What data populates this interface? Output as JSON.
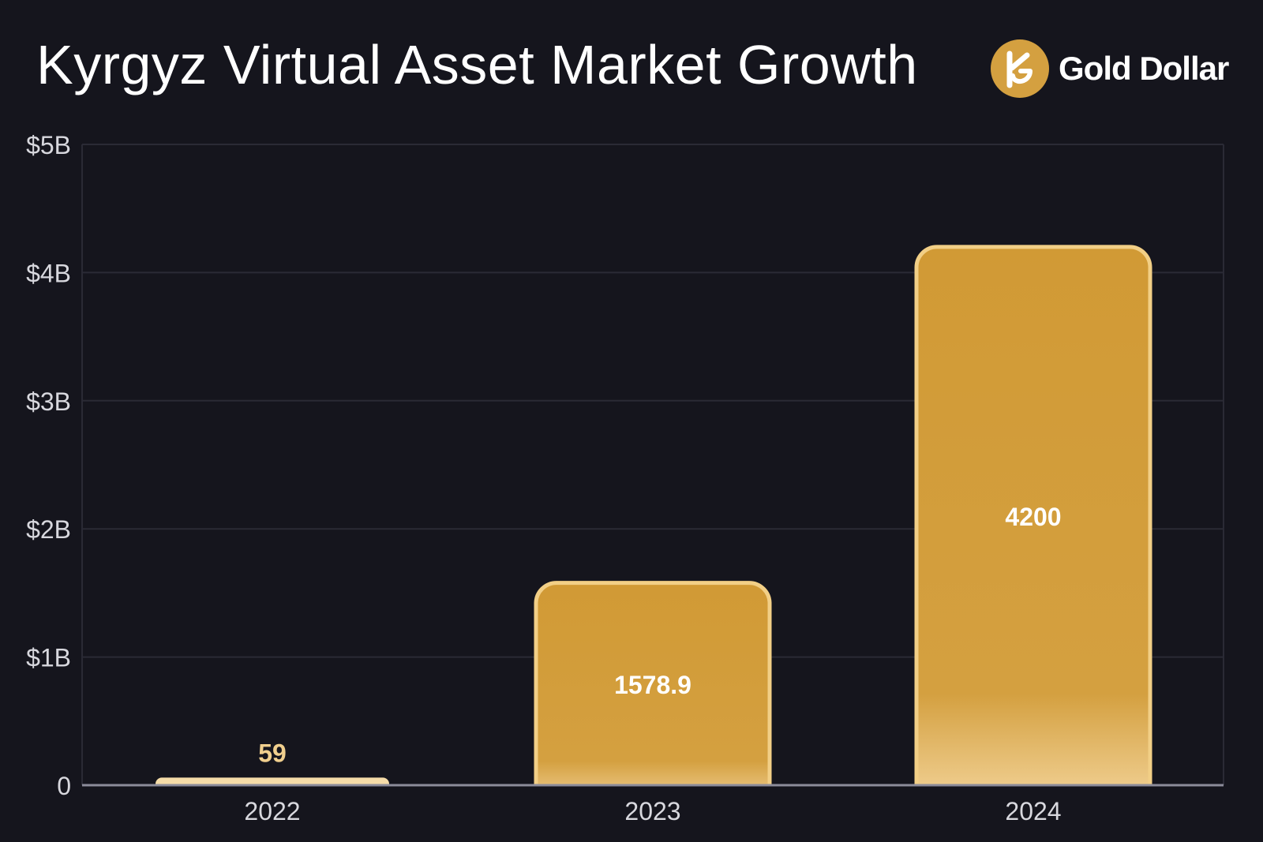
{
  "chart_data": {
    "type": "bar",
    "title": "Kyrgyz Virtual Asset Market Growth",
    "categories": [
      "2022",
      "2023",
      "2024"
    ],
    "values": [
      59,
      1578.9,
      4200
    ],
    "data_labels": [
      "59",
      "1578.9",
      "4200"
    ],
    "unit": "$M",
    "ylim": [
      0,
      5000
    ],
    "yticks": [
      0,
      1000,
      2000,
      3000,
      4000,
      5000
    ],
    "ytick_labels": [
      "0",
      "$1B",
      "$2B",
      "$3B",
      "$4B",
      "$5B"
    ],
    "grid": true,
    "colors": {
      "bar": "#d4a040",
      "bar_edge": "#f2cf86",
      "bar_small": "#f5dca8",
      "label_inside": "#ffffff",
      "label_outside": "#f0cf8e",
      "grid": "#2a2a35",
      "axis": "#8c8c9a",
      "background": "#15151d"
    }
  },
  "brand": {
    "name": "Gold Dollar",
    "logo_icon": "kg-monogram-icon"
  }
}
